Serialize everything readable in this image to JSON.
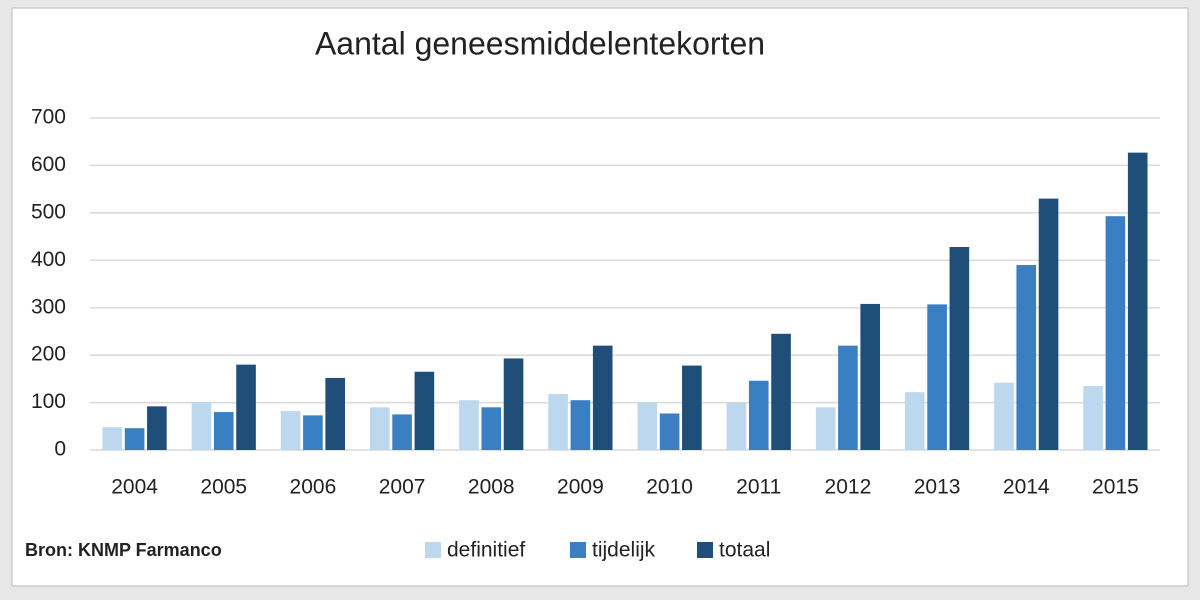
{
  "chart_data": {
    "type": "bar",
    "title": "Aantal geneesmiddelentekorten",
    "source": "Bron: KNMP Farmanco",
    "categories": [
      "2004",
      "2005",
      "2006",
      "2007",
      "2008",
      "2009",
      "2010",
      "2011",
      "2012",
      "2013",
      "2014",
      "2015"
    ],
    "series": [
      {
        "name": "definitief",
        "color": "#bdd7ee",
        "values": [
          48,
          101,
          82,
          90,
          105,
          118,
          100,
          100,
          90,
          122,
          142,
          135
        ]
      },
      {
        "name": "tijdelijk",
        "color": "#3a7fc1",
        "values": [
          46,
          80,
          73,
          75,
          90,
          105,
          77,
          146,
          220,
          307,
          390,
          493
        ]
      },
      {
        "name": "totaal",
        "color": "#1f4e79",
        "values": [
          92,
          180,
          152,
          165,
          193,
          220,
          178,
          245,
          308,
          428,
          530,
          627
        ]
      }
    ],
    "ylim": [
      0,
      700
    ],
    "yticks": [
      0,
      100,
      200,
      300,
      400,
      500,
      600,
      700
    ],
    "grid": true,
    "legend": "bottom"
  }
}
